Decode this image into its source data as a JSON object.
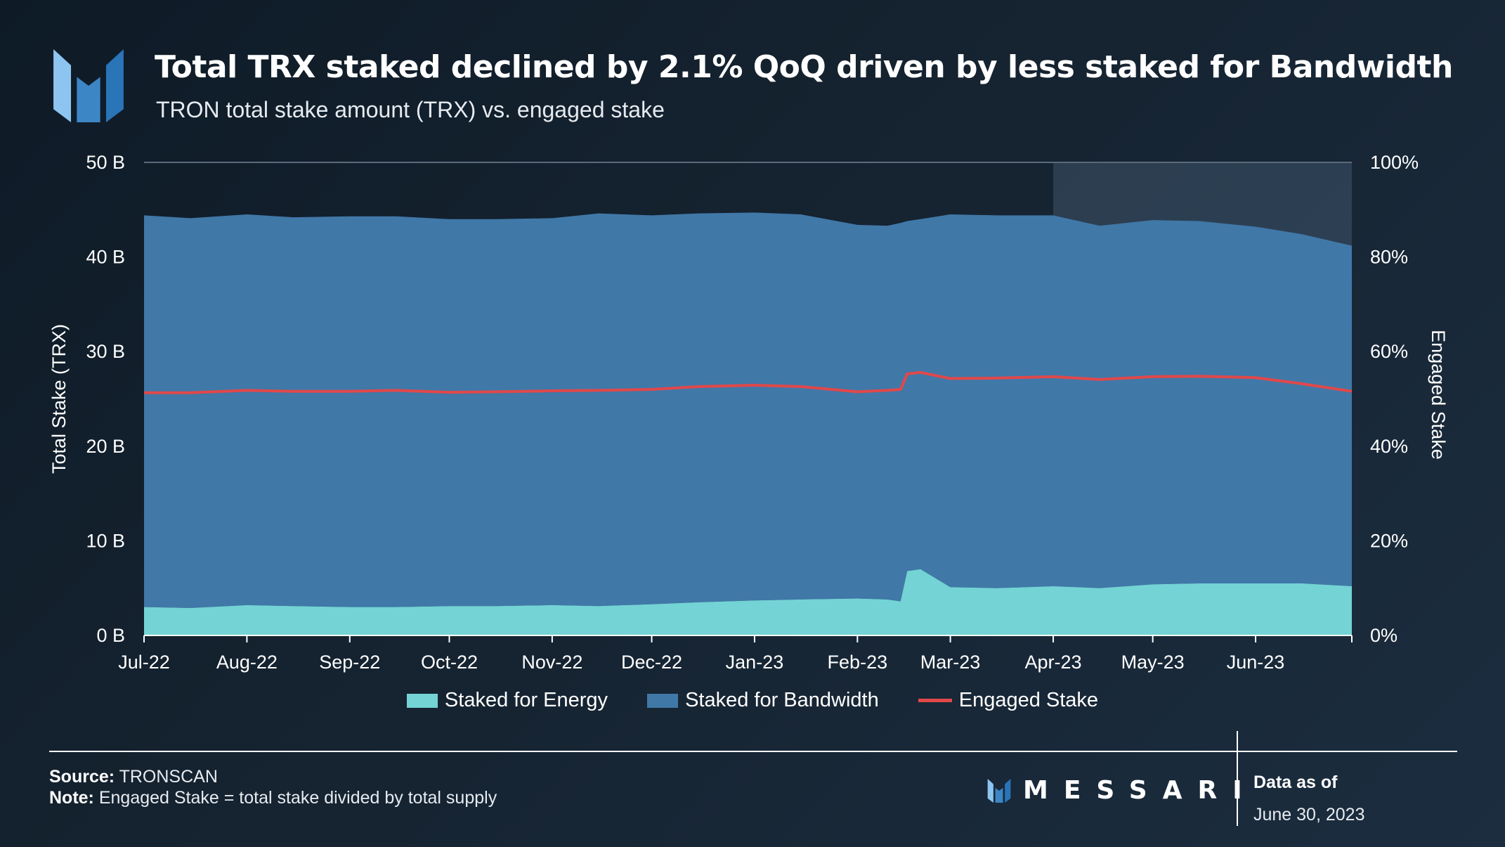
{
  "header": {
    "title": "Total TRX staked declined by 2.1% QoQ driven by less staked for Bandwidth",
    "subtitle": "TRON total stake amount (TRX) vs. engaged stake"
  },
  "footer": {
    "source_label": "Source:",
    "source_value": "TRONSCAN",
    "note_label": "Note:",
    "note_value": "Engaged Stake = total stake divided by total supply",
    "brand": "MESSARI",
    "data_as_of_label": "Data as of",
    "data_as_of_value": "June 30, 2023"
  },
  "colors": {
    "energy": "#74d3d5",
    "bandwidth": "#4078a8",
    "engaged": "#e0484a",
    "highlight": "#8eb4d6"
  },
  "chart_data": {
    "type": "area",
    "title": "Total TRX staked declined by 2.1% QoQ driven by less staked for Bandwidth",
    "subtitle": "TRON total stake amount (TRX) vs. engaged stake",
    "ylabel": "Total Stake (TRX)",
    "y2label": "Engaged Stake",
    "ylim": [
      0,
      50
    ],
    "y2lim": [
      0,
      100
    ],
    "yticks": [
      "0 B",
      "10 B",
      "20 B",
      "30 B",
      "40 B",
      "50 B"
    ],
    "y2ticks": [
      "0%",
      "20%",
      "40%",
      "60%",
      "80%",
      "100%"
    ],
    "categories": [
      "Jul-22",
      "Aug-22",
      "Sep-22",
      "Oct-22",
      "Nov-22",
      "Dec-22",
      "Jan-23",
      "Feb-23",
      "Mar-23",
      "Apr-23",
      "May-23",
      "Jun-23"
    ],
    "highlight_from": "Apr-23",
    "legend": [
      "Staked for Energy",
      "Staked for Bandwidth",
      "Engaged Stake"
    ],
    "series": [
      {
        "name": "Staked for Energy",
        "stacked": true,
        "x": [
          "2022-07-01",
          "2022-07-15",
          "2022-08-01",
          "2022-08-15",
          "2022-09-01",
          "2022-09-15",
          "2022-10-01",
          "2022-10-15",
          "2022-11-01",
          "2022-11-15",
          "2022-12-01",
          "2022-12-15",
          "2023-01-01",
          "2023-01-15",
          "2023-02-01",
          "2023-02-10",
          "2023-02-14",
          "2023-02-16",
          "2023-02-20",
          "2023-03-01",
          "2023-03-15",
          "2023-04-01",
          "2023-04-15",
          "2023-05-01",
          "2023-05-15",
          "2023-06-01",
          "2023-06-15",
          "2023-06-30"
        ],
        "values": [
          3.0,
          2.9,
          3.2,
          3.1,
          3.0,
          3.0,
          3.1,
          3.1,
          3.2,
          3.1,
          3.3,
          3.5,
          3.7,
          3.8,
          3.9,
          3.8,
          3.6,
          6.8,
          7.0,
          5.1,
          5.0,
          5.2,
          5.0,
          5.4,
          5.5,
          5.5,
          5.5,
          5.2
        ]
      },
      {
        "name": "Staked for Bandwidth",
        "stacked": true,
        "x": [
          "2022-07-01",
          "2022-07-15",
          "2022-08-01",
          "2022-08-15",
          "2022-09-01",
          "2022-09-15",
          "2022-10-01",
          "2022-10-15",
          "2022-11-01",
          "2022-11-15",
          "2022-12-01",
          "2022-12-15",
          "2023-01-01",
          "2023-01-15",
          "2023-02-01",
          "2023-02-10",
          "2023-02-14",
          "2023-02-16",
          "2023-02-20",
          "2023-03-01",
          "2023-03-15",
          "2023-04-01",
          "2023-04-15",
          "2023-05-01",
          "2023-05-15",
          "2023-06-01",
          "2023-06-15",
          "2023-06-30"
        ],
        "values": [
          41.4,
          41.2,
          41.3,
          41.1,
          41.3,
          41.3,
          40.9,
          40.9,
          40.9,
          41.5,
          41.1,
          41.1,
          41.0,
          40.7,
          39.5,
          39.5,
          40.0,
          37.0,
          37.0,
          39.4,
          39.4,
          39.2,
          38.3,
          38.5,
          38.3,
          37.7,
          36.9,
          36.0
        ]
      },
      {
        "name": "Engaged Stake",
        "axis": "right",
        "x": [
          "2022-07-01",
          "2022-07-15",
          "2022-08-01",
          "2022-08-15",
          "2022-09-01",
          "2022-09-15",
          "2022-10-01",
          "2022-10-15",
          "2022-11-01",
          "2022-11-15",
          "2022-12-01",
          "2022-12-15",
          "2023-01-01",
          "2023-01-15",
          "2023-02-01",
          "2023-02-10",
          "2023-02-14",
          "2023-02-16",
          "2023-02-20",
          "2023-03-01",
          "2023-03-15",
          "2023-04-01",
          "2023-04-15",
          "2023-05-01",
          "2023-05-15",
          "2023-06-01",
          "2023-06-15",
          "2023-06-30"
        ],
        "values": [
          51.3,
          51.3,
          51.8,
          51.6,
          51.6,
          51.8,
          51.4,
          51.5,
          51.7,
          51.8,
          52.0,
          52.6,
          52.9,
          52.6,
          51.5,
          51.8,
          52.0,
          55.3,
          55.6,
          54.3,
          54.4,
          54.7,
          54.1,
          54.7,
          54.8,
          54.5,
          53.2,
          51.6
        ]
      }
    ]
  }
}
